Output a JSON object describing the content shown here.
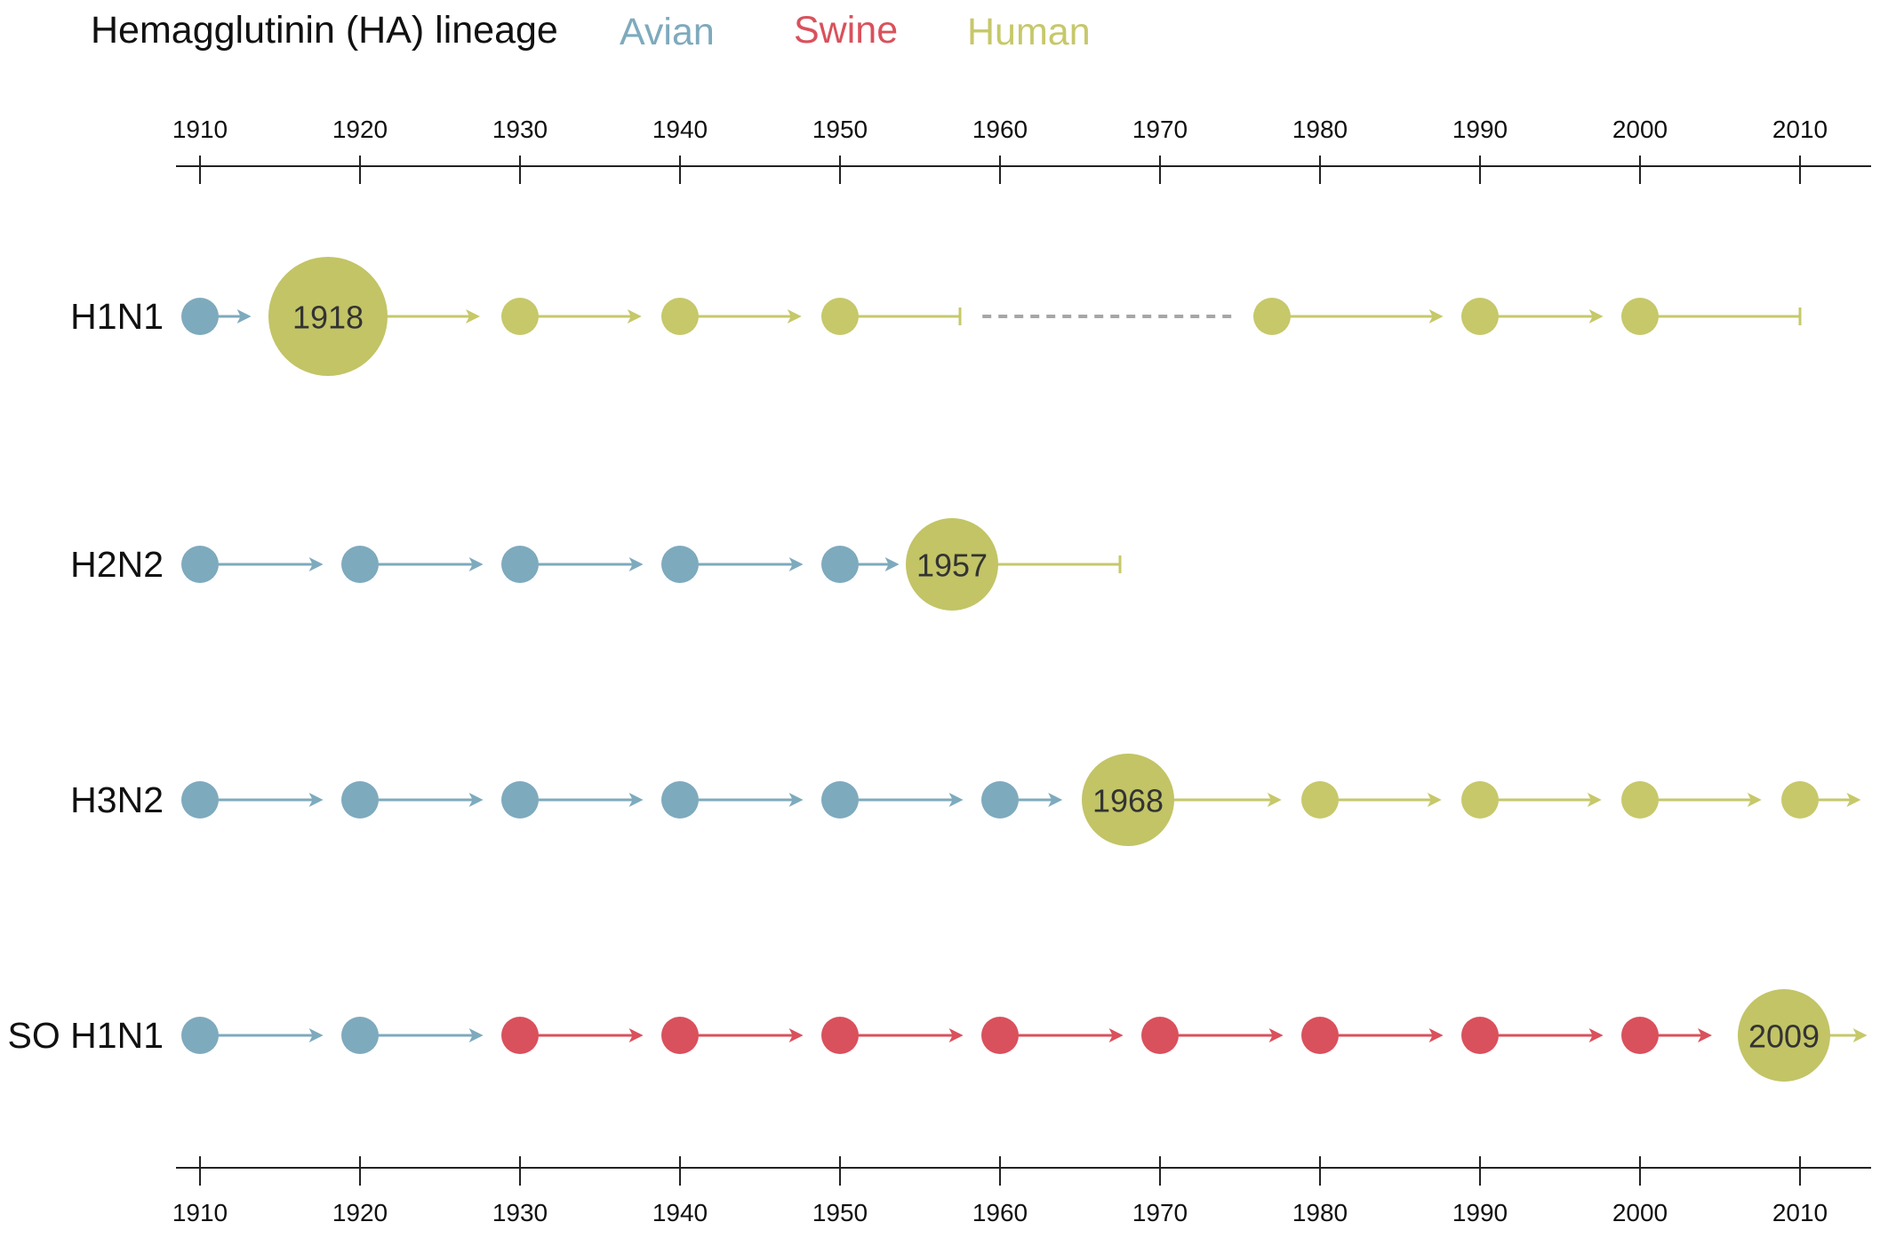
{
  "title": "Hemagglutinin (HA) lineage",
  "colors": {
    "avian": "#7eaabd",
    "swine": "#d9515c",
    "human": "#c6c86a",
    "pandemic": "#c2c466",
    "gap": "#a6a6a6",
    "axis": "#222222"
  },
  "legend": [
    {
      "key": "avian",
      "label": "Avian",
      "color": "#7eaabd"
    },
    {
      "key": "swine",
      "label": "Swine",
      "color": "#d9515c"
    },
    {
      "key": "human",
      "label": "Human",
      "color": "#c6c86a"
    }
  ],
  "axis": {
    "ticks": [
      "1910",
      "1920",
      "1930",
      "1940",
      "1950",
      "1960",
      "1970",
      "1980",
      "1990",
      "2000",
      "2010"
    ]
  },
  "rows": [
    {
      "label": "H1N1",
      "nodes": [
        {
          "year": 1910,
          "host": "avian"
        },
        {
          "year": 1918,
          "host": "pandemic",
          "label": "1918"
        },
        {
          "year": 1930,
          "host": "human"
        },
        {
          "year": 1940,
          "host": "human"
        },
        {
          "year": 1950,
          "host": "human"
        },
        {
          "year": 1977,
          "host": "human"
        },
        {
          "year": 1990,
          "host": "human"
        },
        {
          "year": 2000,
          "host": "human"
        }
      ],
      "segments": [
        {
          "from": 1910,
          "to": 1913.2,
          "host": "avian",
          "end": "arrow"
        },
        {
          "from": 1918,
          "to": 1927.5,
          "host": "human",
          "end": "arrow"
        },
        {
          "from": 1930,
          "to": 1937.6,
          "host": "human",
          "end": "arrow"
        },
        {
          "from": 1940,
          "to": 1947.6,
          "host": "human",
          "end": "arrow"
        },
        {
          "from": 1950,
          "to": 1957.5,
          "host": "human",
          "end": "bar"
        },
        {
          "from": 1958.9,
          "to": 1974.8,
          "host": "gap",
          "end": "none",
          "dashed": true
        },
        {
          "from": 1977,
          "to": 1987.7,
          "host": "human",
          "end": "arrow"
        },
        {
          "from": 1990,
          "to": 1997.7,
          "host": "human",
          "end": "arrow"
        },
        {
          "from": 2000,
          "to": 2010,
          "host": "human",
          "end": "bar"
        }
      ]
    },
    {
      "label": "H2N2",
      "nodes": [
        {
          "year": 1910,
          "host": "avian"
        },
        {
          "year": 1920,
          "host": "avian"
        },
        {
          "year": 1930,
          "host": "avian"
        },
        {
          "year": 1940,
          "host": "avian"
        },
        {
          "year": 1950,
          "host": "avian"
        },
        {
          "year": 1957,
          "host": "pandemic",
          "label": "1957"
        }
      ],
      "segments": [
        {
          "from": 1910,
          "to": 1917.7,
          "host": "avian",
          "end": "arrow"
        },
        {
          "from": 1920,
          "to": 1927.7,
          "host": "avian",
          "end": "arrow"
        },
        {
          "from": 1930,
          "to": 1937.7,
          "host": "avian",
          "end": "arrow"
        },
        {
          "from": 1940,
          "to": 1947.7,
          "host": "avian",
          "end": "arrow"
        },
        {
          "from": 1950,
          "to": 1953.7,
          "host": "avian",
          "end": "arrow"
        },
        {
          "from": 1957,
          "to": 1967.5,
          "host": "human",
          "end": "bar"
        }
      ]
    },
    {
      "label": "H3N2",
      "nodes": [
        {
          "year": 1910,
          "host": "avian"
        },
        {
          "year": 1920,
          "host": "avian"
        },
        {
          "year": 1930,
          "host": "avian"
        },
        {
          "year": 1940,
          "host": "avian"
        },
        {
          "year": 1950,
          "host": "avian"
        },
        {
          "year": 1960,
          "host": "avian"
        },
        {
          "year": 1968,
          "host": "pandemic",
          "label": "1968"
        },
        {
          "year": 1980,
          "host": "human"
        },
        {
          "year": 1990,
          "host": "human"
        },
        {
          "year": 2000,
          "host": "human"
        },
        {
          "year": 2010,
          "host": "human"
        }
      ],
      "segments": [
        {
          "from": 1910,
          "to": 1917.7,
          "host": "avian",
          "end": "arrow"
        },
        {
          "from": 1920,
          "to": 1927.7,
          "host": "avian",
          "end": "arrow"
        },
        {
          "from": 1930,
          "to": 1937.7,
          "host": "avian",
          "end": "arrow"
        },
        {
          "from": 1940,
          "to": 1947.7,
          "host": "avian",
          "end": "arrow"
        },
        {
          "from": 1950,
          "to": 1957.7,
          "host": "avian",
          "end": "arrow"
        },
        {
          "from": 1960,
          "to": 1963.9,
          "host": "avian",
          "end": "arrow"
        },
        {
          "from": 1968,
          "to": 1977.6,
          "host": "human",
          "end": "arrow"
        },
        {
          "from": 1980,
          "to": 1987.6,
          "host": "human",
          "end": "arrow"
        },
        {
          "from": 1990,
          "to": 1997.6,
          "host": "human",
          "end": "arrow"
        },
        {
          "from": 2000,
          "to": 2007.6,
          "host": "human",
          "end": "arrow"
        },
        {
          "from": 2010,
          "to": 2013.8,
          "host": "human",
          "end": "arrow"
        }
      ]
    },
    {
      "label": "SO H1N1",
      "nodes": [
        {
          "year": 1910,
          "host": "avian"
        },
        {
          "year": 1920,
          "host": "avian"
        },
        {
          "year": 1930,
          "host": "swine"
        },
        {
          "year": 1940,
          "host": "swine"
        },
        {
          "year": 1950,
          "host": "swine"
        },
        {
          "year": 1960,
          "host": "swine"
        },
        {
          "year": 1970,
          "host": "swine"
        },
        {
          "year": 1980,
          "host": "swine"
        },
        {
          "year": 1990,
          "host": "swine"
        },
        {
          "year": 2000,
          "host": "swine"
        },
        {
          "year": 2009,
          "host": "pandemic",
          "label": "2009"
        }
      ],
      "segments": [
        {
          "from": 1910,
          "to": 1917.7,
          "host": "avian",
          "end": "arrow"
        },
        {
          "from": 1920,
          "to": 1927.7,
          "host": "avian",
          "end": "arrow"
        },
        {
          "from": 1930,
          "to": 1937.7,
          "host": "swine",
          "end": "arrow"
        },
        {
          "from": 1940,
          "to": 1947.7,
          "host": "swine",
          "end": "arrow"
        },
        {
          "from": 1950,
          "to": 1957.7,
          "host": "swine",
          "end": "arrow"
        },
        {
          "from": 1960,
          "to": 1967.7,
          "host": "swine",
          "end": "arrow"
        },
        {
          "from": 1970,
          "to": 1977.7,
          "host": "swine",
          "end": "arrow"
        },
        {
          "from": 1980,
          "to": 1987.7,
          "host": "swine",
          "end": "arrow"
        },
        {
          "from": 1990,
          "to": 1997.7,
          "host": "swine",
          "end": "arrow"
        },
        {
          "from": 2000,
          "to": 2004.5,
          "host": "swine",
          "end": "arrow"
        },
        {
          "from": 2009,
          "to": 2014.2,
          "host": "human",
          "end": "arrow"
        }
      ]
    }
  ]
}
